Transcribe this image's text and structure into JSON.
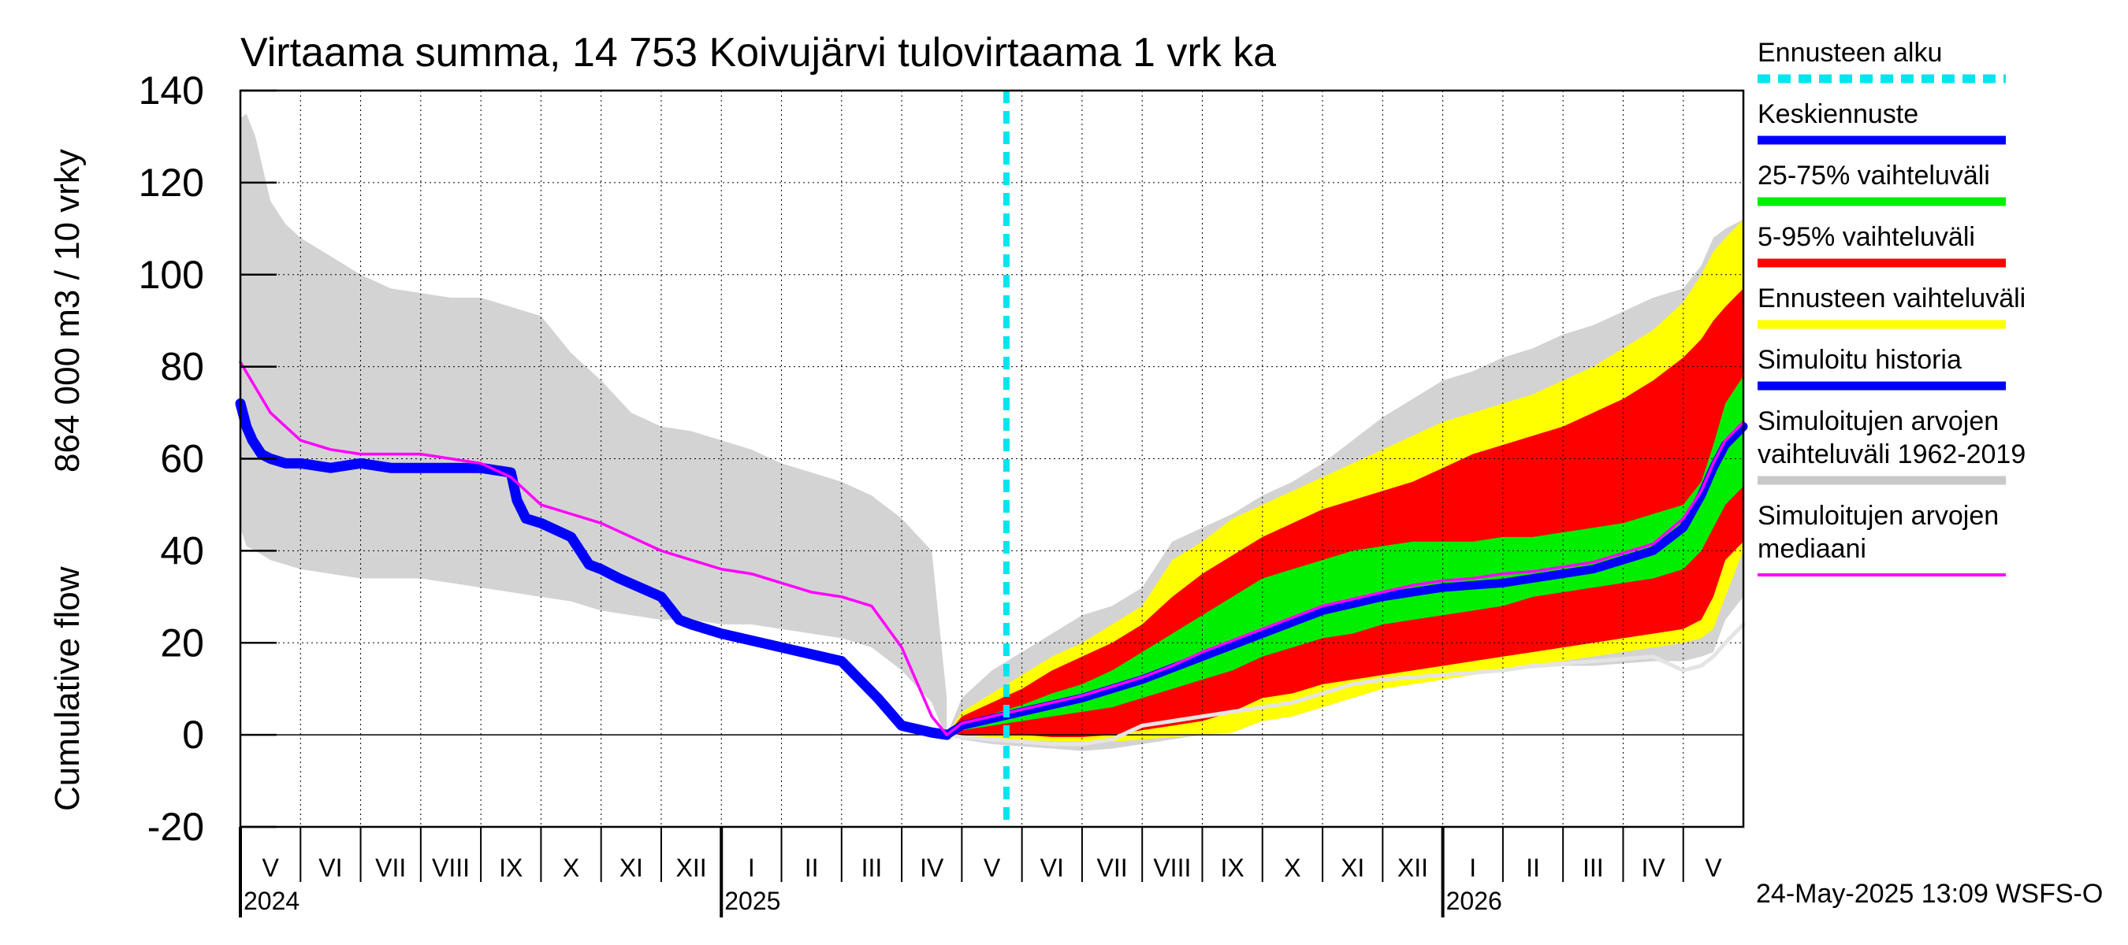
{
  "chart_data": {
    "type": "area",
    "title": "Virtaama summa, 14 753 Koivujärvi tulovirtaama 1 vrk ka",
    "ylabel_top": "864 000 m3 / 10 vrky",
    "ylabel_bottom": "Cumulative flow",
    "ylim": [
      -20,
      140
    ],
    "yticks": [
      -20,
      0,
      20,
      40,
      60,
      80,
      100,
      120,
      140
    ],
    "x_start": "2024-05-01",
    "x_end": "2026-06-01",
    "forecast_start": "2025-05-24",
    "months": [
      "V",
      "VI",
      "VII",
      "VIII",
      "IX",
      "X",
      "XI",
      "XII",
      "I",
      "II",
      "III",
      "IV",
      "V",
      "VI",
      "VII",
      "VIII",
      "IX",
      "X",
      "XI",
      "XII",
      "I",
      "II",
      "III",
      "IV",
      "V"
    ],
    "years": [
      {
        "label": "2024",
        "month_index": 0
      },
      {
        "label": "2025",
        "month_index": 8
      },
      {
        "label": "2026",
        "month_index": 20
      }
    ],
    "timestamp": "24-May-2025 13:09 WSFS-O",
    "legend": [
      {
        "label": "Ennusteen alku",
        "color": "#00e5ee",
        "style": "dashed"
      },
      {
        "label": "Keskiennuste",
        "color": "#0000ff",
        "style": "solid"
      },
      {
        "label": "25-75% vaihteluväli",
        "color": "#00ee00",
        "style": "solid"
      },
      {
        "label": "5-95% vaihteluväli",
        "color": "#ff0000",
        "style": "solid"
      },
      {
        "label": "Ennusteen vaihteluväli",
        "color": "#ffff00",
        "style": "solid"
      },
      {
        "label": "Simuloitu historia",
        "color": "#0000ff",
        "style": "solid"
      },
      {
        "label": "Simuloitujen arvojen vaihteluväli 1962-2019",
        "color": "#c8c8c8",
        "style": "solid"
      },
      {
        "label": "Simuloitujen arvojen mediaani",
        "color": "#ff00ff",
        "style": "solid"
      }
    ],
    "series": {
      "hist_range": {
        "x": [
          0,
          0.1,
          0.25,
          0.5,
          0.75,
          1,
          1.5,
          2,
          2.5,
          3,
          3.5,
          4,
          4.5,
          5,
          5.5,
          6,
          6.5,
          7,
          7.5,
          8,
          8.5,
          9,
          9.5,
          10,
          10.5,
          11,
          11.5,
          11.75
        ],
        "upper": [
          134,
          135,
          130,
          116,
          111,
          108,
          104,
          100,
          97,
          96,
          95,
          95,
          93,
          91,
          83,
          77,
          70,
          67,
          66,
          64,
          62,
          59,
          57,
          55,
          52,
          47,
          40,
          8
        ],
        "lower": [
          45,
          41,
          40,
          38,
          37,
          36,
          35,
          34,
          34,
          34,
          33,
          32,
          31,
          30,
          29,
          27,
          26,
          25,
          25,
          24,
          24,
          23,
          22,
          21,
          19,
          14,
          7,
          -1
        ]
      },
      "simulated_history": {
        "x": [
          0,
          0.1,
          0.2,
          0.35,
          0.5,
          0.75,
          1,
          1.5,
          2,
          2.5,
          3,
          3.5,
          4,
          4.5,
          4.6,
          4.75,
          5,
          5.5,
          5.8,
          6,
          6.3,
          7,
          7.3,
          7.5,
          8,
          9,
          10,
          10.6,
          11,
          11.5,
          11.75
        ],
        "y": [
          72,
          67,
          64,
          61,
          60,
          59,
          59,
          58,
          59,
          58,
          58,
          58,
          58,
          57,
          51,
          47,
          46,
          43,
          37,
          36,
          34,
          30,
          25,
          24,
          22,
          19,
          16,
          8,
          2,
          0.5,
          0
        ]
      },
      "median": {
        "x": [
          0,
          0.5,
          1,
          1.5,
          2,
          2.5,
          3,
          3.5,
          4,
          4.5,
          5,
          5.5,
          6,
          6.5,
          7,
          7.5,
          8,
          8.5,
          9,
          9.5,
          10,
          10.5,
          11,
          11.5,
          11.75
        ],
        "y": [
          81,
          70,
          64,
          62,
          61,
          61,
          61,
          60,
          59,
          56,
          50,
          48,
          46,
          43,
          40,
          38,
          36,
          35,
          33,
          31,
          30,
          28,
          19,
          4,
          0
        ]
      },
      "forecast_x": [
        11.75,
        12,
        12.5,
        13,
        13.5,
        14,
        14.5,
        15,
        15.5,
        16,
        16.5,
        17,
        17.5,
        18,
        18.5,
        19,
        19.5,
        20,
        20.5,
        21,
        21.5,
        22,
        22.5,
        23,
        23.5,
        24,
        24.3,
        24.5,
        24.7,
        25
      ],
      "forecast_min": [
        0,
        -0.5,
        -1,
        -1.2,
        -1.3,
        -1.4,
        -1.5,
        -1,
        -0.5,
        0,
        0.5,
        3,
        4,
        6,
        8,
        10,
        11,
        12,
        13,
        14,
        15,
        16,
        17,
        18,
        19,
        20,
        21,
        23,
        30,
        40
      ],
      "forecast_max": [
        0,
        5,
        9,
        13,
        17,
        20,
        24,
        28,
        38,
        42,
        47,
        50,
        53,
        56,
        59,
        62,
        65,
        68,
        70,
        72,
        74,
        77,
        80,
        84,
        88,
        94,
        100,
        105,
        108,
        112
      ],
      "p5": [
        0,
        0,
        0,
        0,
        -0.5,
        -0.5,
        0,
        1,
        2,
        3,
        5,
        8,
        9,
        11,
        12,
        13,
        14,
        15,
        16,
        17,
        18,
        19,
        20,
        21,
        22,
        23,
        25,
        30,
        38,
        42
      ],
      "p95": [
        0,
        4,
        7,
        10,
        14,
        17,
        20,
        24,
        30,
        35,
        39,
        43,
        46,
        49,
        51,
        53,
        55,
        58,
        61,
        63,
        65,
        67,
        70,
        73,
        77,
        82,
        86,
        90,
        93,
        97
      ],
      "p25": [
        0,
        1,
        2,
        3,
        4,
        5,
        6,
        8,
        10,
        12,
        14,
        17,
        19,
        21,
        22,
        24,
        25,
        26,
        27,
        28,
        30,
        31,
        32,
        33,
        34,
        36,
        40,
        45,
        50,
        54
      ],
      "p75": [
        0,
        2.5,
        4.5,
        6.5,
        9,
        11,
        14,
        18,
        22,
        26,
        30,
        34,
        36,
        38,
        40,
        41,
        42,
        42,
        42,
        43,
        43,
        44,
        45,
        46,
        48,
        50,
        55,
        63,
        72,
        78
      ],
      "forecast_mean": [
        0,
        2,
        3.5,
        5,
        6.5,
        8,
        10,
        12,
        14.5,
        17,
        19.5,
        22,
        24.5,
        27,
        28.5,
        30,
        31,
        32,
        32.5,
        33,
        34,
        35,
        36,
        38,
        40,
        45,
        52,
        58,
        63,
        67
      ],
      "forecast_median": [
        0,
        2.5,
        4,
        5.5,
        7,
        8.5,
        10.5,
        12.5,
        15,
        18,
        20.5,
        23,
        25.5,
        28,
        29.5,
        31,
        32.5,
        33.5,
        34,
        35,
        35.5,
        36.5,
        37.5,
        39.5,
        41.5,
        47,
        53,
        59,
        64,
        68
      ],
      "hist_range_after_x": [
        11.75,
        12,
        12.5,
        13,
        13.5,
        14,
        14.5,
        15,
        15.5,
        16,
        16.5,
        17,
        17.5,
        18,
        18.5,
        19,
        19.5,
        20,
        20.5,
        21,
        21.5,
        22,
        22.5,
        23,
        23.5,
        24,
        24.3,
        24.5,
        24.7,
        25
      ],
      "hist_range_after_upper": [
        0,
        8,
        14,
        18,
        22,
        26,
        28,
        32,
        42,
        45,
        48,
        52,
        55,
        59,
        64,
        69,
        73,
        77,
        79,
        82,
        84,
        87,
        89,
        92,
        95,
        97,
        102,
        108,
        110,
        112
      ],
      "hist_range_after_lower": [
        0,
        -1,
        -2,
        -2.5,
        -3,
        -3.5,
        -3,
        -2,
        -1,
        0,
        1,
        3,
        5,
        7,
        9,
        11,
        12,
        13,
        13.5,
        14,
        14.5,
        15,
        15,
        15.5,
        16,
        16,
        17,
        18,
        25,
        30
      ],
      "hist_lower_line": [
        0,
        -0.5,
        -1,
        -1.5,
        -2,
        -2,
        -1,
        2,
        3,
        4,
        5,
        6,
        7,
        9,
        11,
        12,
        12.5,
        13,
        13.5,
        14,
        15,
        15.5,
        16,
        16.5,
        17,
        14,
        15,
        17,
        20,
        24
      ]
    }
  }
}
